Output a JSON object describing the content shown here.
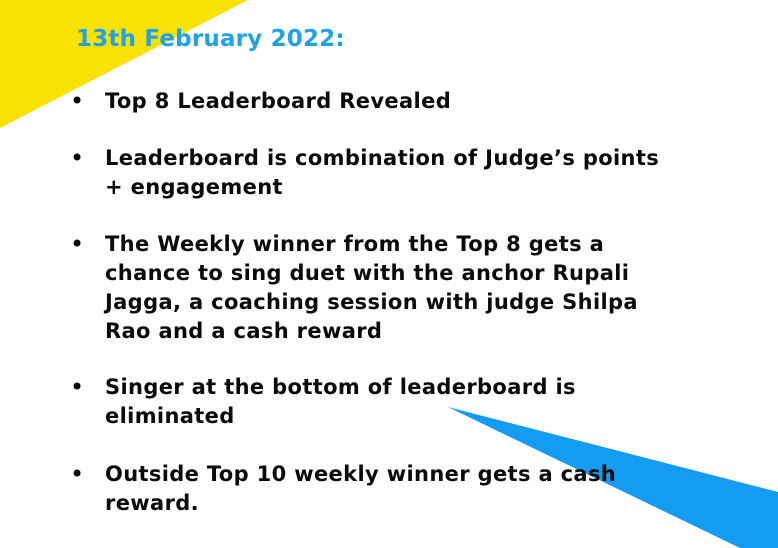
{
  "theme": {
    "yellow": "#f9e103",
    "blue": "#139cf1",
    "heading_color": "#1ea2e8"
  },
  "heading": {
    "date": "13th February 2022:"
  },
  "bullets": [
    {
      "symbol": "•",
      "text": "Top 8 Leaderboard Revealed"
    },
    {
      "symbol": "•",
      "text": "Leaderboard is combination of Judge’s points\n+ engagement"
    },
    {
      "symbol": "•",
      "text": "The Weekly winner from the Top 8 gets a\nchance to sing duet with the anchor Rupali\nJagga, a coaching session with judge Shilpa\nRao and a cash reward"
    },
    {
      "symbol": "•",
      "text": "Singer at the bottom of leaderboard is\neliminated"
    },
    {
      "symbol": "•",
      "text": "Outside Top 10 weekly winner gets a cash\nreward."
    }
  ]
}
